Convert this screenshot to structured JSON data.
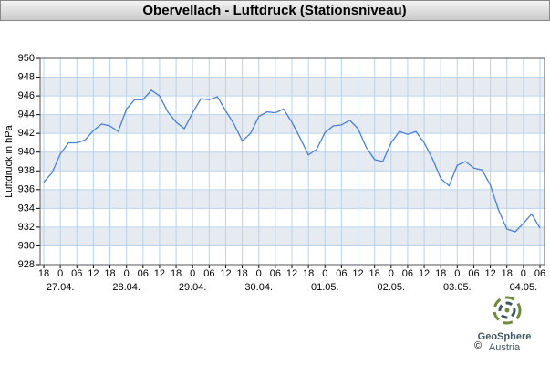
{
  "chart_data": {
    "type": "line",
    "title": "Obervellach - Luftdruck (Stationsniveau)",
    "ylabel": "Luftdruck in hPa",
    "ylim": [
      928,
      950
    ],
    "yticks": [
      928,
      930,
      932,
      934,
      936,
      938,
      940,
      942,
      944,
      946,
      948,
      950
    ],
    "xtick_labels": [
      "18",
      "0",
      "06",
      "12",
      "18",
      "0",
      "06",
      "12",
      "18",
      "0",
      "06",
      "12",
      "18",
      "0",
      "06",
      "12",
      "18",
      "0",
      "06",
      "12",
      "18",
      "0",
      "06",
      "12",
      "18",
      "0",
      "06",
      "12",
      "18",
      "0",
      "06"
    ],
    "date_labels": [
      "27.04.",
      "28.04.",
      "29.04.",
      "30.04.",
      "01.05.",
      "02.05.",
      "03.05.",
      "04.05."
    ],
    "grid": true,
    "series": [
      {
        "color": "#4a7fd4",
        "values": [
          936.8,
          937.8,
          939.8,
          941.0,
          941.0,
          941.3,
          942.3,
          943.0,
          942.8,
          942.2,
          944.6,
          945.6,
          945.6,
          946.6,
          946.0,
          944.3,
          943.2,
          942.5,
          944.2,
          945.7,
          945.6,
          945.9,
          944.4,
          943.0,
          941.2,
          942.0,
          943.8,
          944.3,
          944.2,
          944.6,
          943.2,
          941.5,
          939.7,
          940.3,
          942.1,
          942.8,
          942.9,
          943.4,
          942.5,
          940.5,
          939.2,
          939.0,
          941.0,
          942.2,
          941.9,
          942.2,
          941.0,
          939.3,
          937.2,
          936.4,
          938.6,
          939.0,
          938.3,
          938.1,
          936.5,
          933.8,
          931.8,
          931.5,
          932.4,
          933.4,
          931.9
        ]
      }
    ]
  },
  "logo": {
    "name": "GeoSphere",
    "sub": "Austria",
    "copyright": "©"
  }
}
